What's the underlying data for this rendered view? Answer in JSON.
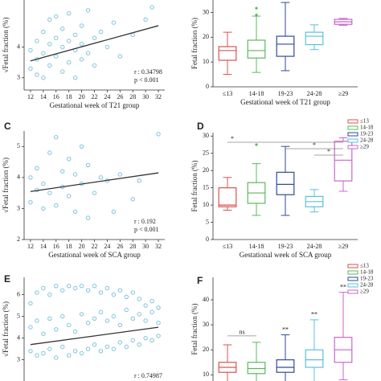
{
  "chart_data": [
    {
      "type": "scatter",
      "x_label": "Gestational week of T21 group",
      "y_label": "√Fetal fraction (%)",
      "x": [
        12,
        12,
        13,
        13,
        13,
        14,
        14,
        14,
        15,
        15,
        15,
        16,
        16,
        16,
        17,
        17,
        17,
        18,
        18,
        18,
        19,
        19,
        19,
        20,
        20,
        20,
        21,
        21,
        22,
        22,
        23,
        24,
        25,
        26,
        28,
        30,
        31
      ],
      "y": [
        3.3,
        3.9,
        3.1,
        4.2,
        3.6,
        3.0,
        4.5,
        3.8,
        3.4,
        4.9,
        4.1,
        3.7,
        4.3,
        5.0,
        3.2,
        4.0,
        4.6,
        3.5,
        4.2,
        5.1,
        3.9,
        4.4,
        3.0,
        3.6,
        4.7,
        4.1,
        3.8,
        5.2,
        4.3,
        3.4,
        4.5,
        4.0,
        4.8,
        3.7,
        4.4,
        4.9,
        5.3
      ],
      "color": "#7cc4dc",
      "fit": {
        "x": [
          12,
          32
        ],
        "y": [
          3.55,
          4.7
        ]
      },
      "fit_color": "#333333",
      "xlim": [
        11,
        33
      ],
      "ylim": [
        2.6,
        5.8
      ],
      "xticks": [
        12,
        14,
        16,
        18,
        20,
        22,
        24,
        26,
        28,
        30,
        32
      ],
      "yticks": [
        3,
        4
      ],
      "annotations": [
        "r : 0.34798",
        "p < 0.001"
      ]
    },
    {
      "type": "box",
      "x_label": "Gestational week of T21 group",
      "y_label": "Fetal fraction (%)",
      "categories": [
        "≤13",
        "14-18",
        "19-23",
        "24-28",
        "≥29"
      ],
      "colors": [
        "#d9534f",
        "#5cb85c",
        "#2e4a9e",
        "#5bc0de",
        "#cc66cc"
      ],
      "boxes": [
        {
          "min": 5,
          "q1": 10.7,
          "median": 14.6,
          "q3": 16.2,
          "max": 22
        },
        {
          "min": 5.8,
          "q1": 11.6,
          "median": 14.6,
          "q3": 18.8,
          "max": 28.5
        },
        {
          "min": 6.5,
          "q1": 12.3,
          "median": 17.2,
          "q3": 20.4,
          "max": 34
        },
        {
          "min": 15,
          "q1": 17,
          "median": 20.4,
          "q3": 22,
          "max": 25
        },
        {
          "min": 24.8,
          "q1": 25.2,
          "median": 26.2,
          "q3": 27.2,
          "max": 27.6
        }
      ],
      "outliers": [
        [],
        [
          29,
          31.7
        ],
        [],
        [],
        []
      ],
      "ylim": [
        0,
        35
      ],
      "yticks": [
        0,
        10,
        20,
        30
      ]
    },
    {
      "type": "scatter",
      "label": "C",
      "x_label": "Gestational week of SCA group",
      "y_label": "√Fetal fraction (%)",
      "x": [
        12,
        12,
        13,
        13,
        14,
        14,
        15,
        15,
        16,
        16,
        17,
        17,
        18,
        18,
        19,
        19,
        20,
        20,
        21,
        21,
        22,
        23,
        24,
        25,
        26,
        28,
        29,
        32
      ],
      "y": [
        3.2,
        4.0,
        3.6,
        4.3,
        3.0,
        3.8,
        4.8,
        3.5,
        5.3,
        3.1,
        4.2,
        3.7,
        3.4,
        4.6,
        2.9,
        4.1,
        3.8,
        5.0,
        2.7,
        4.4,
        3.5,
        4.0,
        3.9,
        2.9,
        4.1,
        3.3,
        3.9,
        5.4
      ],
      "color": "#7cc4dc",
      "fit": {
        "x": [
          12,
          32
        ],
        "y": [
          3.55,
          4.15
        ]
      },
      "fit_color": "#333333",
      "xlim": [
        11,
        33
      ],
      "ylim": [
        2,
        5.5
      ],
      "xticks": [
        12,
        14,
        16,
        18,
        20,
        22,
        24,
        26,
        28,
        30,
        32
      ],
      "yticks": [
        2,
        3,
        4,
        5
      ],
      "annotations": [
        "r : 0.192",
        "p < 0.001"
      ]
    },
    {
      "type": "box",
      "label": "D",
      "x_label": "Gestational week of SCA group",
      "y_label": "Fetal fraction (%)",
      "categories": [
        "≤13",
        "14-18",
        "19-23",
        "24-28",
        "≥29"
      ],
      "colors": [
        "#d9534f",
        "#5cb85c",
        "#2e4a9e",
        "#5bc0de",
        "#cc66cc"
      ],
      "boxes": [
        {
          "min": 8.5,
          "q1": 9.5,
          "median": 10,
          "q3": 15,
          "max": 18
        },
        {
          "min": 7,
          "q1": 10.5,
          "median": 13.5,
          "q3": 16.5,
          "max": 22
        },
        {
          "min": 7,
          "q1": 13,
          "median": 16,
          "q3": 19.5,
          "max": 27
        },
        {
          "min": 8,
          "q1": 9.5,
          "median": 11,
          "q3": 12.5,
          "max": 14.5
        },
        {
          "min": 14,
          "q1": 17,
          "median": 23,
          "q3": 28.5,
          "max": 29.5
        }
      ],
      "outliers": [
        [],
        [
          27.5
        ],
        [],
        [],
        []
      ],
      "significance": [
        {
          "from": 0,
          "to": 4,
          "label": "*"
        },
        {
          "from": 2,
          "to": 4,
          "label": "*"
        },
        {
          "from": 3,
          "to": 4,
          "label": "*"
        }
      ],
      "legend": true,
      "ylim": [
        0,
        31
      ],
      "yticks": [
        0,
        5,
        10,
        15,
        20,
        25,
        30
      ]
    },
    {
      "type": "scatter",
      "label": "E",
      "y_label": "√Fetal fraction (%)",
      "x": [
        12,
        12,
        12,
        13,
        13,
        13,
        14,
        14,
        14,
        15,
        15,
        15,
        16,
        16,
        16,
        17,
        17,
        17,
        18,
        18,
        18,
        19,
        19,
        19,
        20,
        20,
        20,
        21,
        21,
        21,
        22,
        22,
        22,
        23,
        23,
        23,
        24,
        24,
        24,
        25,
        25,
        25,
        26,
        26,
        26,
        27,
        27,
        27,
        28,
        28,
        28,
        29,
        29,
        29,
        30,
        30,
        30,
        31,
        31,
        31,
        32,
        32,
        32
      ],
      "y": [
        3.4,
        4.5,
        5.6,
        3.2,
        4.8,
        6.1,
        3.3,
        4.2,
        6.3,
        3.5,
        4.9,
        6.0,
        3.1,
        4.4,
        6.4,
        3.6,
        5.0,
        6.2,
        3.2,
        4.6,
        6.4,
        3.4,
        4.3,
        6.3,
        3.3,
        5.1,
        6.4,
        3.5,
        4.7,
        6.2,
        3.7,
        4.9,
        6.4,
        3.4,
        5.2,
        6.1,
        3.6,
        4.8,
        6.3,
        3.5,
        5.0,
        6.0,
        3.8,
        4.6,
        6.2,
        3.6,
        5.3,
        5.9,
        3.9,
        4.9,
        6.1,
        3.7,
        5.1,
        5.8,
        4.0,
        4.8,
        5.5,
        3.9,
        5.2,
        5.7,
        4.1,
        4.7,
        5.4
      ],
      "color": "#7cc4dc",
      "fit": {
        "x": [
          12,
          32
        ],
        "y": [
          3.7,
          4.5
        ]
      },
      "fit_color": "#333333",
      "xlim": [
        11,
        33
      ],
      "ylim": [
        1.8,
        6.8
      ],
      "yticks": [
        3,
        4,
        5,
        6
      ],
      "annotations": [
        "r : 0.74987"
      ]
    },
    {
      "type": "box",
      "label": "F",
      "y_label": "Fetal fraction (%)",
      "categories": [
        "≤13",
        "14-18",
        "19-23",
        "24-28",
        "≥29"
      ],
      "colors": [
        "#d9534f",
        "#5cb85c",
        "#2e4a9e",
        "#5bc0de",
        "#cc66cc"
      ],
      "boxes": [
        {
          "min": 6,
          "q1": 11,
          "median": 13,
          "q3": 15,
          "max": 22
        },
        {
          "min": 6,
          "q1": 10.5,
          "median": 12.5,
          "q3": 15,
          "max": 23
        },
        {
          "min": 6,
          "q1": 11,
          "median": 13,
          "q3": 16,
          "max": 26
        },
        {
          "min": 7,
          "q1": 13,
          "median": 16,
          "q3": 20,
          "max": 32
        },
        {
          "min": 8,
          "q1": 15,
          "median": 20,
          "q3": 25,
          "max": 43
        }
      ],
      "outliers": [
        [],
        [],
        [],
        [],
        []
      ],
      "significance": [
        {
          "from": 0,
          "to": 1,
          "label": "ns"
        },
        {
          "from": 2,
          "to": 2,
          "label": "**"
        },
        {
          "from": 3,
          "to": 3,
          "label": "**"
        },
        {
          "from": 4,
          "to": 4,
          "label": "**"
        }
      ],
      "legend": true,
      "ylim": [
        5.6,
        49
      ],
      "yticks": [
        10,
        20,
        30,
        40
      ]
    }
  ]
}
